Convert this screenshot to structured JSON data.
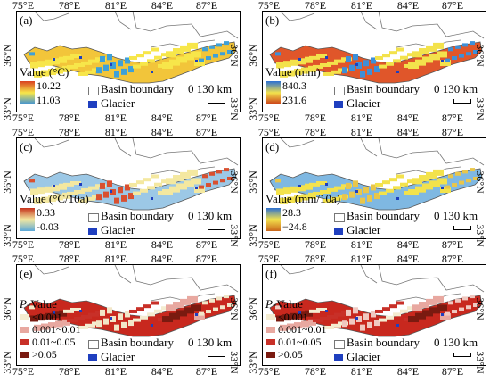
{
  "lon_ticks": [
    "75°E",
    "78°E",
    "81°E",
    "84°E",
    "87°E"
  ],
  "lat_ticks": [
    "36°N",
    "33°N"
  ],
  "panels": [
    {
      "label": "(a)",
      "legend_title": "Value (°C)",
      "high": "10.22",
      "low": "11.03",
      "grad_top": "#d94020",
      "grad_mid": "#f7e64a",
      "grad_bot": "#3a8fd8",
      "type": "continuous",
      "fill_main": "#f2c53a",
      "fill_alt": "#3ea0d8"
    },
    {
      "label": "(b)",
      "legend_title": "Value (mm)",
      "high": "840.3",
      "low": "231.6",
      "grad_top": "#2a6fd4",
      "grad_mid": "#f3e24c",
      "grad_bot": "#c93a16",
      "type": "continuous",
      "fill_main": "#e0562a",
      "fill_alt": "#3d8fd8"
    },
    {
      "label": "(c)",
      "legend_title": "Value (°C/10a)",
      "high": "0.33",
      "low": "-0.03",
      "grad_top": "#c6321a",
      "grad_mid": "#f4e8a0",
      "grad_bot": "#5aa8d8",
      "type": "continuous",
      "fill_main": "#9cc8e6",
      "fill_alt": "#d95030"
    },
    {
      "label": "(d)",
      "legend_title": "Value (mm/10a)",
      "high": "28.3",
      "low": "−24.8",
      "grad_top": "#2c6fd0",
      "grad_mid": "#f3e24c",
      "grad_bot": "#c9661a",
      "type": "continuous",
      "fill_main": "#7fb8e2",
      "fill_alt": "#e9c64a"
    },
    {
      "label": "(e)",
      "legend_title": "P-Value",
      "type": "classes",
      "classes": [
        "<0.001",
        "0.001~0.01",
        "0.01~0.05",
        ">0.05"
      ],
      "class_colors": [
        "#f4ecd0",
        "#e8a8a0",
        "#c83028",
        "#7a1a10"
      ],
      "fill_main": "#c8281e",
      "fill_alt": "#f2e6c8"
    },
    {
      "label": "(f)",
      "legend_title": "P-Value",
      "type": "classes",
      "classes": [
        "<0.001",
        "0.001~0.01",
        "0.01~0.05",
        ">0.05"
      ],
      "class_colors": [
        "#f4ecd0",
        "#e8a8a0",
        "#c83028",
        "#7a1a10"
      ],
      "fill_main": "#c8281e",
      "fill_alt": "#f0c8c0"
    }
  ],
  "legend": {
    "basin": "Basin boundary",
    "glacier": "Glacier",
    "scale": "0  130 km"
  },
  "colors": {
    "glacier": "#1f3fbf",
    "boundary": "#777777"
  }
}
